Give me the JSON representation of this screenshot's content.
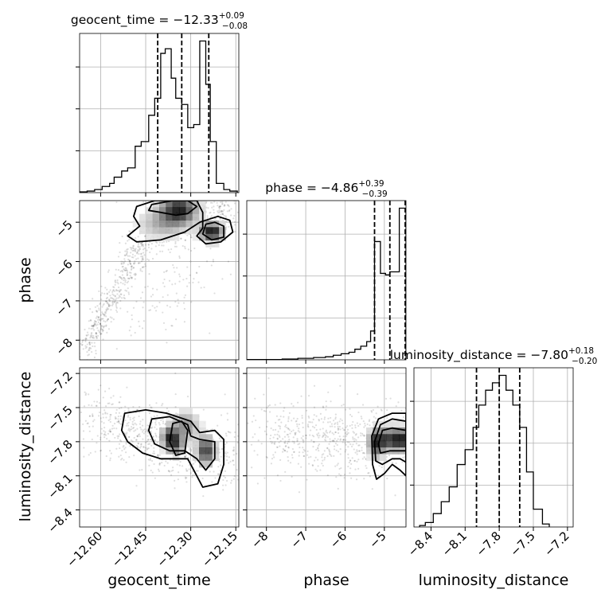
{
  "chart_data": {
    "type": "corner",
    "grid": true,
    "parameters": [
      {
        "name": "geocent_time",
        "axis_label": "geocent_time",
        "title": "geocent_time = −12.33",
        "title_upper": "+0.09",
        "title_lower": "−0.08",
        "range": [
          -12.67,
          -12.14
        ],
        "ticks": [
          -12.6,
          -12.45,
          -12.3,
          -12.15
        ],
        "tick_labels": [
          "−12.60",
          "−12.45",
          "−12.30",
          "−12.15"
        ],
        "quantiles": [
          -12.41,
          -12.33,
          -12.24
        ],
        "hist_edges": [
          -12.67,
          -12.645,
          -12.62,
          -12.595,
          -12.57,
          -12.555,
          -12.53,
          -12.51,
          -12.485,
          -12.465,
          -12.44,
          -12.42,
          -12.4,
          -12.385,
          -12.365,
          -12.35,
          -12.33,
          -12.31,
          -12.29,
          -12.27,
          -12.25,
          -12.235,
          -12.215,
          -12.19,
          -12.17,
          -12.145
        ],
        "hist_counts": [
          0.005,
          0.01,
          0.02,
          0.04,
          0.06,
          0.1,
          0.14,
          0.16,
          0.3,
          0.33,
          0.5,
          0.61,
          0.9,
          0.93,
          0.74,
          0.61,
          0.57,
          0.42,
          0.44,
          0.98,
          0.7,
          0.33,
          0.06,
          0.02,
          0.01
        ]
      },
      {
        "name": "phase",
        "axis_label": "phase",
        "title": "phase = −4.86",
        "title_upper": "+0.39",
        "title_lower": "−0.39",
        "range": [
          -8.5,
          -4.45
        ],
        "ticks": [
          -8,
          -7,
          -6,
          -5
        ],
        "tick_labels": [
          "−8",
          "−7",
          "−6",
          "−5"
        ],
        "quantiles": [
          -5.25,
          -4.86,
          -4.47
        ],
        "hist_edges": [
          -8.5,
          -7.6,
          -7.2,
          -6.8,
          -6.5,
          -6.3,
          -6.1,
          -5.9,
          -5.75,
          -5.6,
          -5.45,
          -5.35,
          -5.25,
          -5.1,
          -4.97,
          -4.86,
          -4.62,
          -4.45
        ],
        "hist_counts": [
          0.002,
          0.005,
          0.01,
          0.015,
          0.02,
          0.03,
          0.04,
          0.05,
          0.07,
          0.09,
          0.12,
          0.19,
          0.78,
          0.57,
          0.56,
          0.58,
          1.0
        ]
      },
      {
        "name": "luminosity_distance",
        "axis_label": "luminosity_distance",
        "title": "luminosity_distance = −7.80",
        "title_upper": "+0.18",
        "title_lower": "−0.20",
        "range": [
          -8.55,
          -7.15
        ],
        "ticks": [
          -8.4,
          -8.1,
          -7.8,
          -7.5,
          -7.2
        ],
        "tick_labels": [
          "−8.4",
          "−8.1",
          "−7.8",
          "−7.5",
          "−7.2"
        ],
        "quantiles": [
          -8.0,
          -7.8,
          -7.62
        ],
        "hist_edges": [
          -8.5,
          -8.45,
          -8.38,
          -8.31,
          -8.24,
          -8.17,
          -8.1,
          -8.03,
          -7.98,
          -7.92,
          -7.86,
          -7.8,
          -7.74,
          -7.68,
          -7.62,
          -7.56,
          -7.5,
          -7.42,
          -7.36
        ],
        "hist_counts": [
          0.01,
          0.03,
          0.09,
          0.17,
          0.27,
          0.42,
          0.52,
          0.67,
          0.82,
          0.92,
          0.97,
          1.02,
          0.92,
          0.82,
          0.67,
          0.37,
          0.12,
          0.02
        ]
      }
    ],
    "pairs": [
      {
        "x": "geocent_time",
        "y": "phase",
        "peaks": [
          {
            "x": -12.34,
            "y": -4.68,
            "sx": 0.04,
            "sy": 0.25,
            "w": 0.9
          },
          {
            "x": -12.23,
            "y": -5.25,
            "sx": 0.025,
            "sy": 0.15,
            "w": 1.0
          },
          {
            "x": -12.4,
            "y": -5.05,
            "sx": 0.05,
            "sy": 0.25,
            "w": 0.3
          }
        ],
        "contours": [
          [
            [
              -12.36,
              -4.45
            ],
            [
              -12.43,
              -4.55
            ],
            [
              -12.44,
              -4.7
            ],
            [
              -12.4,
              -4.75
            ],
            [
              -12.35,
              -4.82
            ],
            [
              -12.31,
              -4.78
            ],
            [
              -12.28,
              -4.6
            ],
            [
              -12.31,
              -4.45
            ]
          ],
          [
            [
              -12.42,
              -4.45
            ],
            [
              -12.48,
              -4.6
            ],
            [
              -12.49,
              -4.85
            ],
            [
              -12.47,
              -5.1
            ],
            [
              -12.51,
              -5.35
            ],
            [
              -12.48,
              -5.5
            ],
            [
              -12.4,
              -5.45
            ],
            [
              -12.32,
              -5.25
            ],
            [
              -12.27,
              -5.0
            ],
            [
              -12.21,
              -4.85
            ],
            [
              -12.17,
              -4.95
            ],
            [
              -12.16,
              -5.25
            ],
            [
              -12.2,
              -5.5
            ],
            [
              -12.25,
              -5.55
            ],
            [
              -12.28,
              -5.35
            ],
            [
              -12.26,
              -5.15
            ],
            [
              -12.26,
              -4.75
            ],
            [
              -12.28,
              -4.45
            ]
          ],
          [
            [
              -12.25,
              -5.05
            ],
            [
              -12.26,
              -5.3
            ],
            [
              -12.23,
              -5.45
            ],
            [
              -12.19,
              -5.38
            ],
            [
              -12.19,
              -5.1
            ],
            [
              -12.22,
              -5.0
            ]
          ]
        ],
        "scatter_clusters": [
          {
            "x0": -12.66,
            "y0": -8.35,
            "x1": -12.46,
            "y1": -5.55,
            "n": 420,
            "sx": 0.018,
            "sy": 0.18
          },
          {
            "x0": -12.45,
            "y0": -5.4,
            "x1": -12.17,
            "y1": -4.55,
            "n": 500,
            "sx": 0.05,
            "sy": 0.28
          },
          {
            "x0": -12.5,
            "y0": -7.6,
            "x1": -12.22,
            "y1": -5.7,
            "n": 120,
            "sx": 0.06,
            "sy": 0.55
          }
        ]
      },
      {
        "x": "geocent_time",
        "y": "luminosity_distance",
        "peaks": [
          {
            "x": -12.37,
            "y": -7.76,
            "sx": 0.018,
            "sy": 0.06,
            "w": 0.9
          },
          {
            "x": -12.35,
            "y": -7.83,
            "sx": 0.02,
            "sy": 0.06,
            "w": 0.7
          },
          {
            "x": -12.25,
            "y": -7.88,
            "sx": 0.02,
            "sy": 0.08,
            "w": 1.0
          },
          {
            "x": -12.32,
            "y": -7.66,
            "sx": 0.03,
            "sy": 0.08,
            "w": 0.55
          }
        ],
        "contours": [
          [
            [
              -12.53,
              -7.7
            ],
            [
              -12.52,
              -7.55
            ],
            [
              -12.45,
              -7.52
            ],
            [
              -12.38,
              -7.55
            ],
            [
              -12.3,
              -7.62
            ],
            [
              -12.27,
              -7.72
            ],
            [
              -12.22,
              -7.7
            ],
            [
              -12.19,
              -7.78
            ],
            [
              -12.19,
              -8.0
            ],
            [
              -12.21,
              -8.17
            ],
            [
              -12.26,
              -8.2
            ],
            [
              -12.29,
              -8.05
            ],
            [
              -12.31,
              -7.95
            ],
            [
              -12.35,
              -7.95
            ],
            [
              -12.4,
              -7.95
            ],
            [
              -12.46,
              -7.9
            ],
            [
              -12.51,
              -7.8
            ]
          ],
          [
            [
              -12.44,
              -7.7
            ],
            [
              -12.43,
              -7.6
            ],
            [
              -12.37,
              -7.58
            ],
            [
              -12.31,
              -7.65
            ],
            [
              -12.3,
              -7.75
            ],
            [
              -12.27,
              -7.78
            ],
            [
              -12.22,
              -7.8
            ],
            [
              -12.22,
              -7.95
            ],
            [
              -12.25,
              -8.05
            ],
            [
              -12.28,
              -7.95
            ],
            [
              -12.32,
              -7.88
            ],
            [
              -12.37,
              -7.88
            ],
            [
              -12.42,
              -7.82
            ]
          ],
          [
            [
              -12.36,
              -7.64
            ],
            [
              -12.33,
              -7.62
            ],
            [
              -12.31,
              -7.7
            ],
            [
              -12.32,
              -7.9
            ],
            [
              -12.35,
              -7.92
            ],
            [
              -12.37,
              -7.8
            ]
          ]
        ],
        "scatter_clusters": [
          {
            "x0": -12.62,
            "y0": -7.6,
            "x1": -12.18,
            "y1": -7.95,
            "n": 700,
            "sx": 0.07,
            "sy": 0.14
          }
        ]
      },
      {
        "x": "phase",
        "y": "luminosity_distance",
        "peaks": [
          {
            "x": -4.9,
            "y": -7.78,
            "sx": 0.25,
            "sy": 0.07,
            "w": 1.0
          },
          {
            "x": -4.55,
            "y": -7.78,
            "sx": 0.15,
            "sy": 0.06,
            "w": 1.0
          },
          {
            "x": -5.2,
            "y": -7.82,
            "sx": 0.12,
            "sy": 0.08,
            "w": 0.85
          }
        ],
        "contours": [
          [
            [
              -4.45,
              -7.55
            ],
            [
              -4.8,
              -7.55
            ],
            [
              -5.15,
              -7.6
            ],
            [
              -5.32,
              -7.75
            ],
            [
              -5.3,
              -8.0
            ],
            [
              -5.2,
              -8.13
            ],
            [
              -5.0,
              -8.08
            ],
            [
              -4.8,
              -8.0
            ],
            [
              -4.6,
              -8.05
            ],
            [
              -4.45,
              -8.1
            ]
          ],
          [
            [
              -4.45,
              -7.62
            ],
            [
              -4.8,
              -7.6
            ],
            [
              -5.1,
              -7.65
            ],
            [
              -5.25,
              -7.8
            ],
            [
              -5.22,
              -7.97
            ],
            [
              -5.05,
              -8.0
            ],
            [
              -4.8,
              -7.95
            ],
            [
              -4.6,
              -7.95
            ],
            [
              -4.45,
              -7.98
            ]
          ],
          [
            [
              -4.45,
              -7.7
            ],
            [
              -4.8,
              -7.68
            ],
            [
              -5.05,
              -7.7
            ],
            [
              -5.15,
              -7.82
            ],
            [
              -5.1,
              -7.9
            ],
            [
              -4.85,
              -7.88
            ],
            [
              -4.6,
              -7.88
            ],
            [
              -4.45,
              -7.88
            ]
          ]
        ],
        "scatter_clusters": [
          {
            "x0": -8.0,
            "y0": -7.75,
            "x1": -4.5,
            "y1": -7.8,
            "n": 650,
            "sx": 0.55,
            "sy": 0.16
          }
        ]
      }
    ]
  }
}
